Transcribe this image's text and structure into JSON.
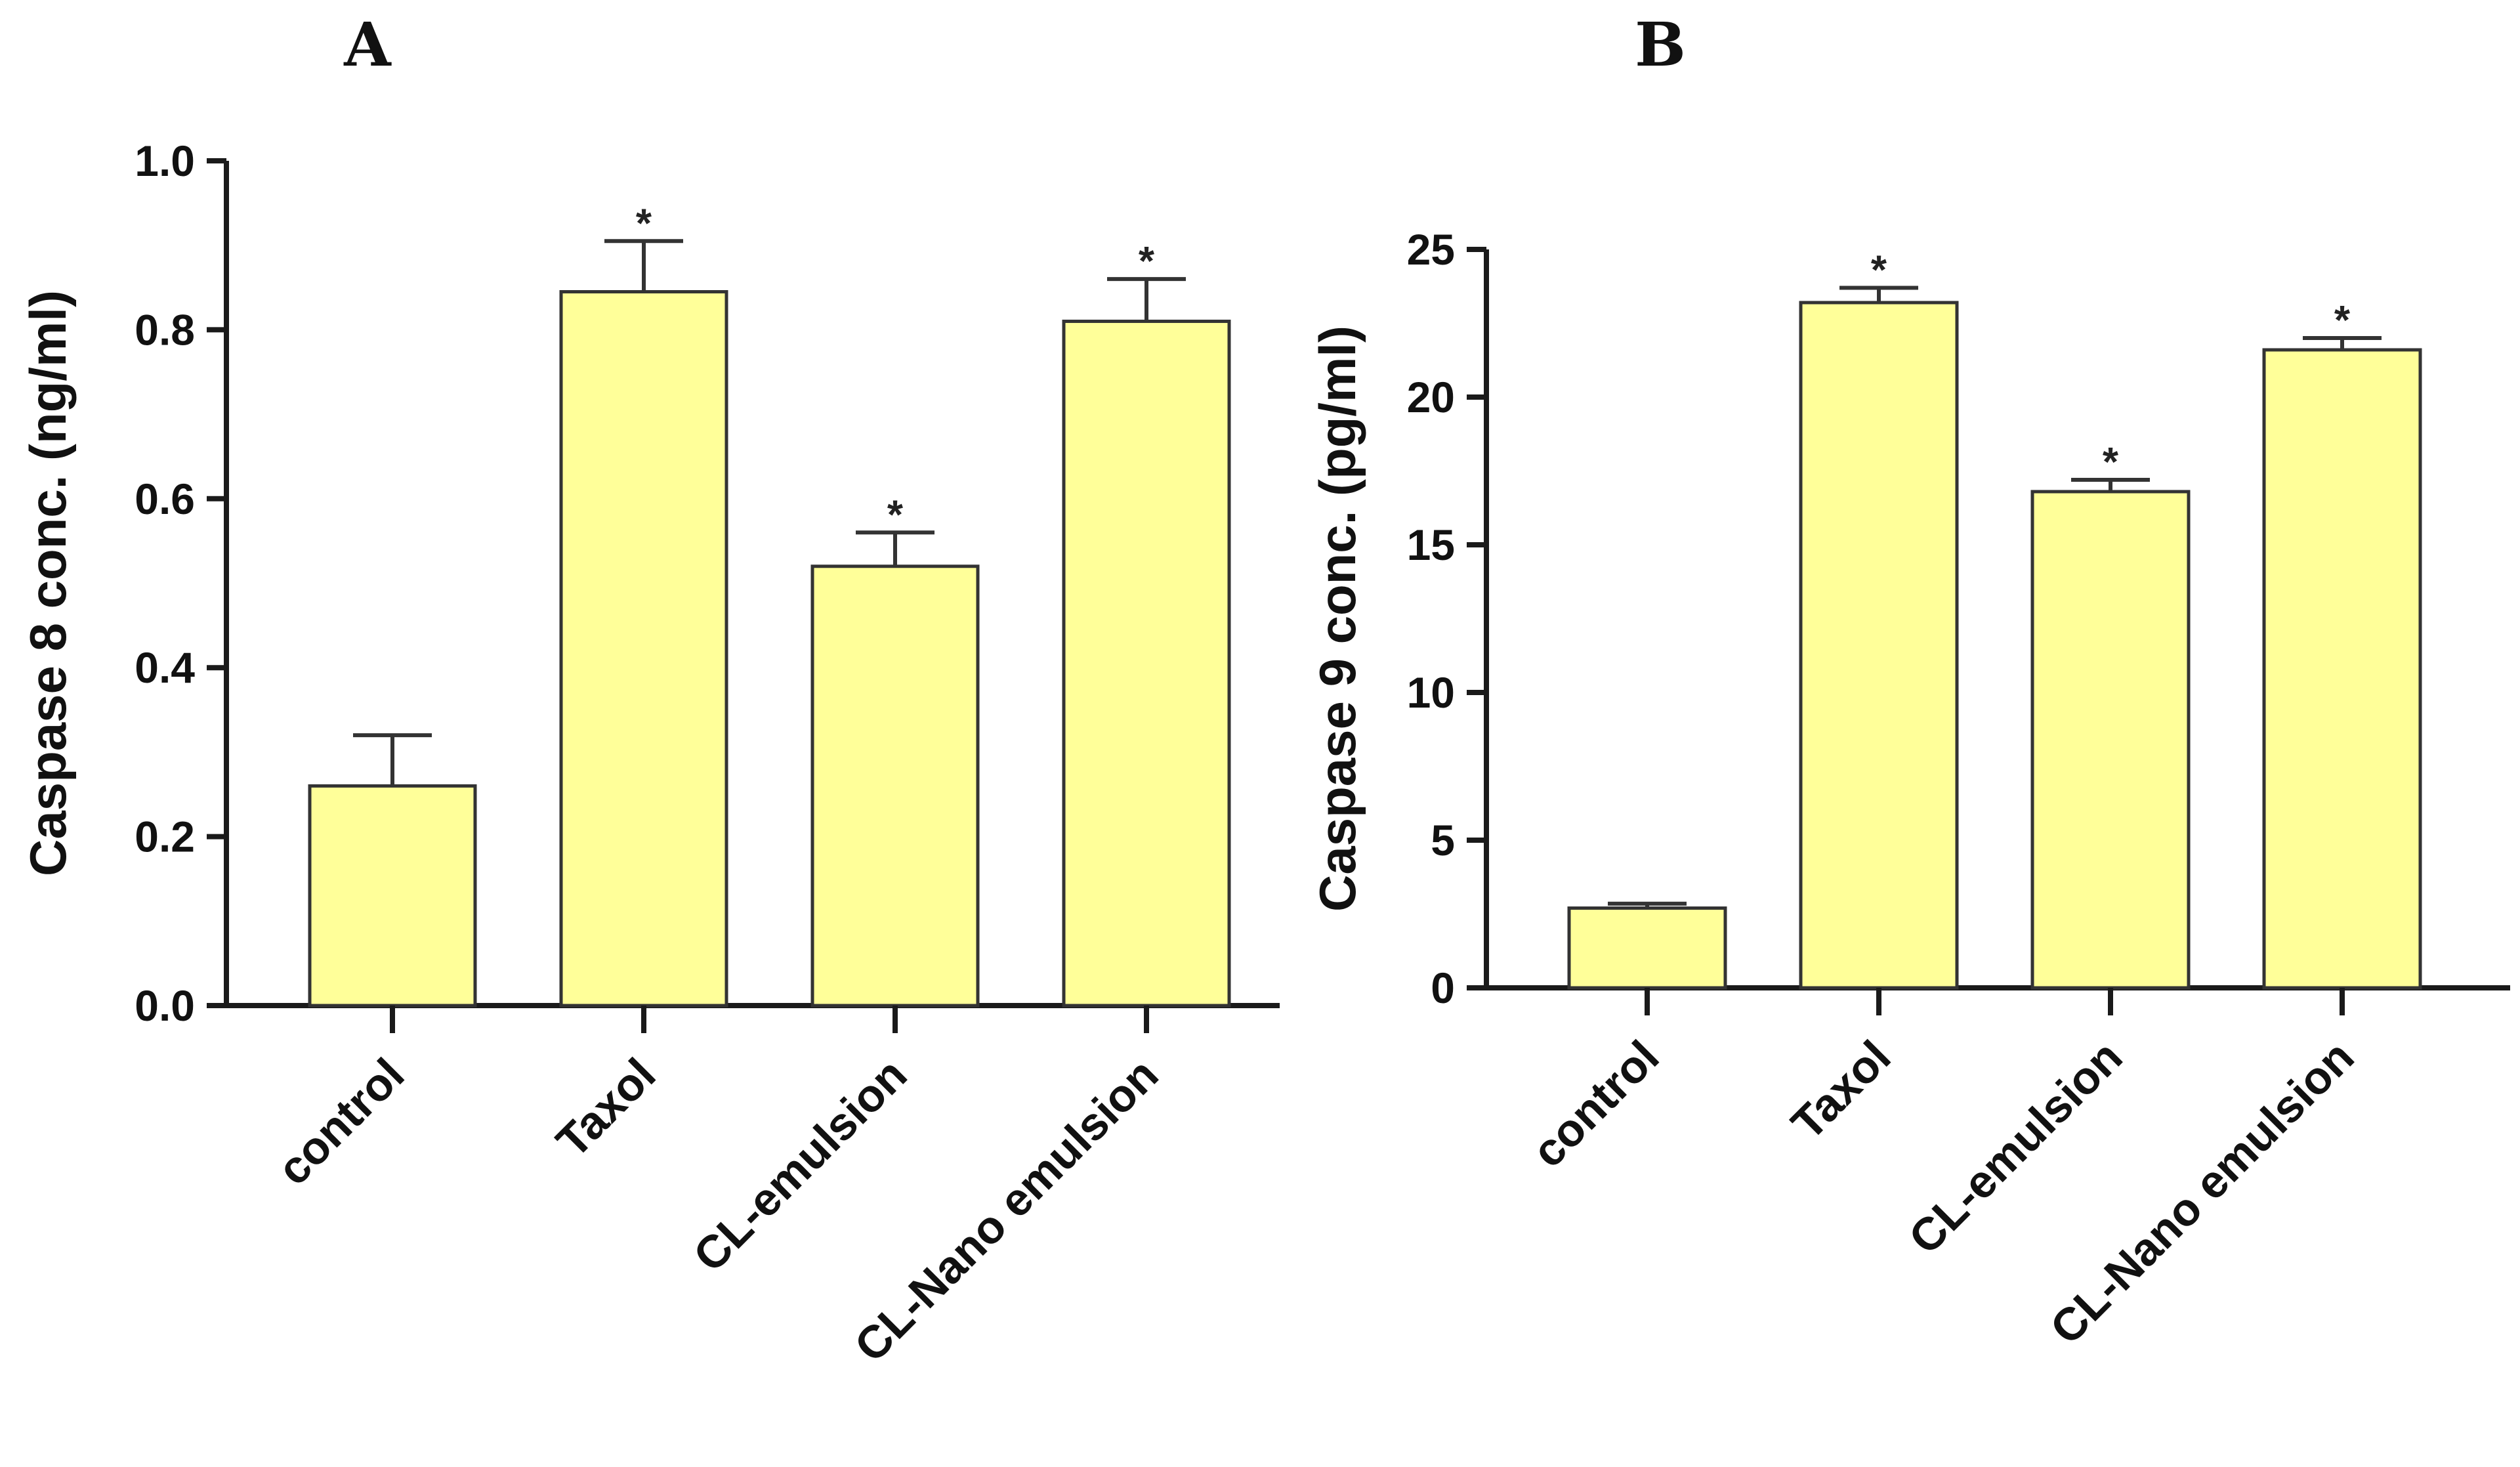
{
  "chart_data": [
    {
      "type": "bar",
      "panel": "A",
      "ylabel": "Caspase 8 conc. (ng/ml)",
      "categories": [
        "control",
        "Taxol",
        "CL-emulsion",
        "CL-Nano emulsion"
      ],
      "values": [
        0.26,
        0.845,
        0.52,
        0.81
      ],
      "errors": [
        0.06,
        0.06,
        0.04,
        0.05
      ],
      "significance": [
        "",
        "*",
        "*",
        "*"
      ],
      "ylim": [
        0,
        1.0
      ],
      "yticks": [
        "0.0",
        "0.2",
        "0.4",
        "0.6",
        "0.8",
        "1.0"
      ],
      "bar_color": "#FFFF99"
    },
    {
      "type": "bar",
      "panel": "B",
      "ylabel": "Caspase 9 conc. (pg/ml)",
      "categories": [
        "control",
        "Taxol",
        "CL-emulsion",
        "CL-Nano emulsion"
      ],
      "values": [
        2.7,
        23.2,
        16.8,
        21.6
      ],
      "errors": [
        0.15,
        0.5,
        0.4,
        0.4
      ],
      "significance": [
        "",
        "*",
        "*",
        "*"
      ],
      "ylim": [
        0,
        25
      ],
      "yticks": [
        "0",
        "5",
        "10",
        "15",
        "20",
        "25"
      ],
      "bar_color": "#FFFF99"
    }
  ]
}
